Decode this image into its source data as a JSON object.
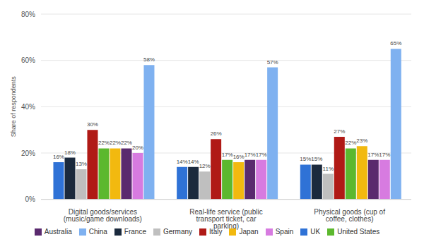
{
  "chart_data": {
    "type": "bar",
    "y_label": "Share of respondents",
    "categories": [
      "Digital goods/services (music/game downloads)",
      "Real-life service (public transport ticket, car parking)",
      "Physical goods (cup of coffee, clothes)"
    ],
    "series": [
      {
        "name": "UK",
        "color": "#2f72d6",
        "values": [
          16,
          14,
          15
        ],
        "value_labels": [
          "16%",
          "14%",
          "15%"
        ]
      },
      {
        "name": "France",
        "color": "#1b2a3d",
        "values": [
          18,
          14,
          15
        ],
        "value_labels": [
          "18%",
          "14%",
          "15%"
        ]
      },
      {
        "name": "Germany",
        "color": "#bfbfbf",
        "values": [
          13,
          12,
          11
        ],
        "value_labels": [
          "13%",
          "12%",
          "11%"
        ]
      },
      {
        "name": "Italy",
        "color": "#b01a16",
        "values": [
          30,
          26,
          27
        ],
        "value_labels": [
          "30%",
          "26%",
          "27%"
        ]
      },
      {
        "name": "United States",
        "color": "#5cb82e",
        "values": [
          22,
          17,
          22
        ],
        "value_labels": [
          "22%",
          "17%",
          "22%"
        ]
      },
      {
        "name": "Japan",
        "color": "#f2b90f",
        "values": [
          22,
          16,
          23
        ],
        "value_labels": [
          "22%",
          "16%",
          "23%"
        ]
      },
      {
        "name": "Australia",
        "color": "#5a2a6e",
        "values": [
          22,
          17,
          17
        ],
        "value_labels": [
          "22%",
          "17%",
          "17%"
        ]
      },
      {
        "name": "Spain",
        "color": "#d77be0",
        "values": [
          20,
          17,
          17
        ],
        "value_labels": [
          "20%",
          "17%",
          "17%"
        ]
      },
      {
        "name": "China",
        "color": "#7fb1f0",
        "values": [
          58,
          57,
          65
        ],
        "value_labels": [
          "58%",
          "57%",
          "65%"
        ]
      }
    ],
    "ylim": [
      0,
      80
    ],
    "yticks": [
      {
        "value": 0,
        "label": "0%"
      },
      {
        "value": 20,
        "label": "20%"
      },
      {
        "value": 40,
        "label": "40%"
      },
      {
        "value": 60,
        "label": "60%"
      },
      {
        "value": 80,
        "label": "80%"
      }
    ],
    "grid": true,
    "legend": "bottom",
    "data_labels": true
  }
}
